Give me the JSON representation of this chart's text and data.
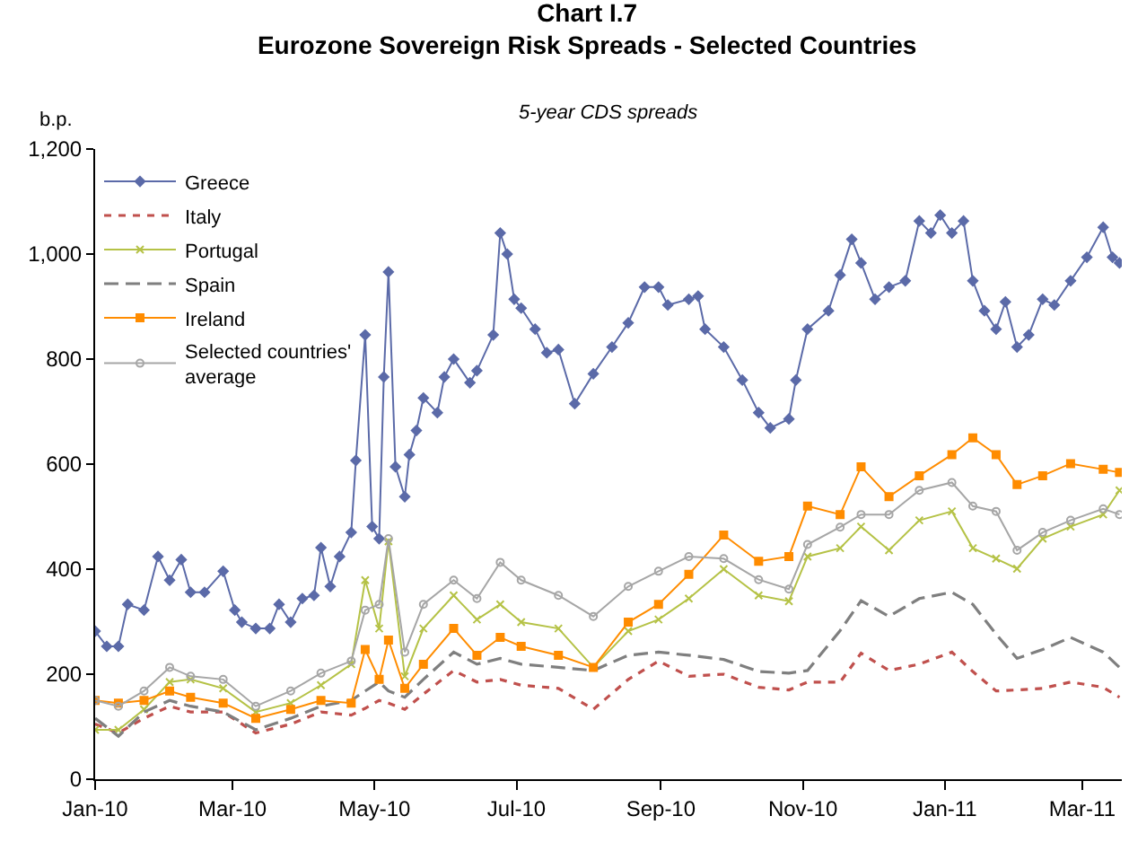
{
  "chart_data": {
    "type": "line",
    "title": "Chart I.7\nEurozone Sovereign Risk Spreads - Selected Countries",
    "subtitle": "5-year CDS spreads",
    "ylabel": "b.p.",
    "x": [
      "2010-01-01",
      "2010-01-11",
      "2010-01-22",
      "2010-02-02",
      "2010-02-11",
      "2010-02-25",
      "2010-03-11",
      "2010-03-26",
      "2010-04-08",
      "2010-04-21",
      "2010-04-27",
      "2010-05-03",
      "2010-05-07",
      "2010-05-14",
      "2010-05-22",
      "2010-06-04",
      "2010-06-14",
      "2010-06-24",
      "2010-07-03",
      "2010-07-19",
      "2010-08-03",
      "2010-08-18",
      "2010-08-31",
      "2010-09-13",
      "2010-09-28",
      "2010-10-13",
      "2010-10-26",
      "2010-11-03",
      "2010-11-17",
      "2010-11-26",
      "2010-12-08",
      "2010-12-21",
      "2011-01-04",
      "2011-01-13",
      "2011-01-23",
      "2011-02-01",
      "2011-02-12",
      "2011-02-24",
      "2011-03-10",
      "2011-03-17"
    ],
    "series": [
      {
        "name": "Greece",
        "color": "#5b6aa8",
        "marker": "diamond",
        "line_style": "solid",
        "x": [
          "2010-01-01",
          "2010-01-06",
          "2010-01-11",
          "2010-01-15",
          "2010-01-22",
          "2010-01-28",
          "2010-02-02",
          "2010-02-07",
          "2010-02-11",
          "2010-02-17",
          "2010-02-25",
          "2010-03-02",
          "2010-03-05",
          "2010-03-11",
          "2010-03-17",
          "2010-03-21",
          "2010-03-26",
          "2010-03-31",
          "2010-04-05",
          "2010-04-08",
          "2010-04-12",
          "2010-04-16",
          "2010-04-21",
          "2010-04-23",
          "2010-04-27",
          "2010-04-30",
          "2010-05-03",
          "2010-05-05",
          "2010-05-07",
          "2010-05-10",
          "2010-05-14",
          "2010-05-16",
          "2010-05-19",
          "2010-05-22",
          "2010-05-28",
          "2010-05-31",
          "2010-06-04",
          "2010-06-11",
          "2010-06-14",
          "2010-06-21",
          "2010-06-24",
          "2010-06-27",
          "2010-06-30",
          "2010-07-03",
          "2010-07-09",
          "2010-07-14",
          "2010-07-19",
          "2010-07-26",
          "2010-08-03",
          "2010-08-11",
          "2010-08-18",
          "2010-08-25",
          "2010-08-31",
          "2010-09-04",
          "2010-09-13",
          "2010-09-17",
          "2010-09-20",
          "2010-09-28",
          "2010-10-06",
          "2010-10-13",
          "2010-10-18",
          "2010-10-26",
          "2010-10-29",
          "2010-11-03",
          "2010-11-12",
          "2010-11-17",
          "2010-11-22",
          "2010-11-26",
          "2010-12-02",
          "2010-12-08",
          "2010-12-15",
          "2010-12-21",
          "2010-12-26",
          "2010-12-30",
          "2011-01-04",
          "2011-01-09",
          "2011-01-13",
          "2011-01-18",
          "2011-01-23",
          "2011-01-27",
          "2011-02-01",
          "2011-02-06",
          "2011-02-12",
          "2011-02-17",
          "2011-02-24",
          "2011-03-03",
          "2011-03-10",
          "2011-03-14",
          "2011-03-17"
        ],
        "values": [
          282,
          253,
          253,
          333,
          322,
          424,
          379,
          418,
          356,
          356,
          396,
          322,
          299,
          287,
          287,
          333,
          299,
          344,
          350,
          441,
          367,
          424,
          470,
          607,
          846,
          481,
          458,
          766,
          966,
          595,
          538,
          618,
          664,
          726,
          698,
          766,
          800,
          755,
          778,
          846,
          1040,
          1000,
          914,
          897,
          857,
          812,
          818,
          715,
          772,
          823,
          869,
          937,
          937,
          903,
          914,
          920,
          857,
          823,
          760,
          698,
          669,
          686,
          760,
          857,
          892,
          960,
          1028,
          983,
          914,
          937,
          949,
          1063,
          1040,
          1074,
          1040,
          1063,
          949,
          892,
          857,
          909,
          823,
          846,
          914,
          903,
          949,
          994,
          1051,
          994,
          983
        ]
      },
      {
        "name": "Italy",
        "color": "#c0504d",
        "marker": "none",
        "line_style": "dashed",
        "values": [
          105,
          88,
          116,
          139,
          128,
          128,
          88,
          105,
          128,
          122,
          135,
          150,
          145,
          133,
          162,
          207,
          185,
          190,
          179,
          173,
          133,
          190,
          225,
          196,
          200,
          175,
          170,
          185,
          185,
          240,
          207,
          219,
          242,
          205,
          168,
          170,
          173,
          185,
          175,
          156
        ]
      },
      {
        "name": "Portugal",
        "color": "#b5c246",
        "marker": "cross",
        "line_style": "solid",
        "values": [
          94,
          94,
          133,
          185,
          190,
          173,
          128,
          145,
          179,
          219,
          379,
          287,
          453,
          196,
          287,
          350,
          304,
          333,
          299,
          287,
          213,
          282,
          304,
          344,
          400,
          350,
          339,
          424,
          440,
          481,
          436,
          493,
          510,
          440,
          420,
          401,
          458,
          481,
          504,
          550
        ]
      },
      {
        "name": "Spain",
        "color": "#7f7f7f",
        "marker": "none",
        "line_style": "longdash",
        "values": [
          116,
          82,
          128,
          150,
          139,
          128,
          94,
          116,
          139,
          150,
          168,
          185,
          168,
          156,
          190,
          242,
          219,
          230,
          219,
          213,
          207,
          236,
          242,
          236,
          228,
          205,
          202,
          207,
          283,
          340,
          310,
          344,
          356,
          333,
          276,
          230,
          247,
          270,
          242,
          213
        ]
      },
      {
        "name": "Ireland",
        "color": "#ff8c00",
        "marker": "square",
        "line_style": "solid",
        "values": [
          150,
          145,
          150,
          168,
          156,
          145,
          116,
          133,
          150,
          145,
          247,
          190,
          265,
          173,
          219,
          287,
          236,
          270,
          253,
          236,
          213,
          299,
          333,
          390,
          465,
          415,
          424,
          520,
          504,
          595,
          538,
          578,
          618,
          650,
          618,
          561,
          578,
          601,
          590,
          584
        ]
      },
      {
        "name": "Selected countries'\naverage",
        "color": "#a6a6a6",
        "marker": "circle",
        "line_style": "solid",
        "values": [
          150,
          139,
          168,
          213,
          196,
          190,
          139,
          168,
          202,
          225,
          322,
          333,
          458,
          242,
          333,
          379,
          344,
          413,
          379,
          350,
          310,
          367,
          396,
          424,
          420,
          380,
          362,
          447,
          480,
          504,
          504,
          550,
          565,
          520,
          510,
          436,
          470,
          493,
          515,
          504
        ]
      }
    ],
    "xlim": [
      "2010-01-01",
      "2011-03-18"
    ],
    "xticks": [
      {
        "value": "2010-01-01",
        "label": "Jan-10"
      },
      {
        "value": "2010-03-01",
        "label": "Mar-10"
      },
      {
        "value": "2010-05-01",
        "label": "May-10"
      },
      {
        "value": "2010-07-01",
        "label": "Jul-10"
      },
      {
        "value": "2010-09-01",
        "label": "Sep-10"
      },
      {
        "value": "2010-11-01",
        "label": "Nov-10"
      },
      {
        "value": "2011-01-01",
        "label": "Jan-11"
      },
      {
        "value": "2011-03-01",
        "label": "Mar-11"
      }
    ],
    "ylim": [
      0,
      1200
    ],
    "yticks": [
      0,
      200,
      400,
      600,
      800,
      {
        "value": 1000,
        "label": "1,000"
      },
      {
        "value": 1200,
        "label": "1,200"
      }
    ],
    "legend": "top left"
  }
}
